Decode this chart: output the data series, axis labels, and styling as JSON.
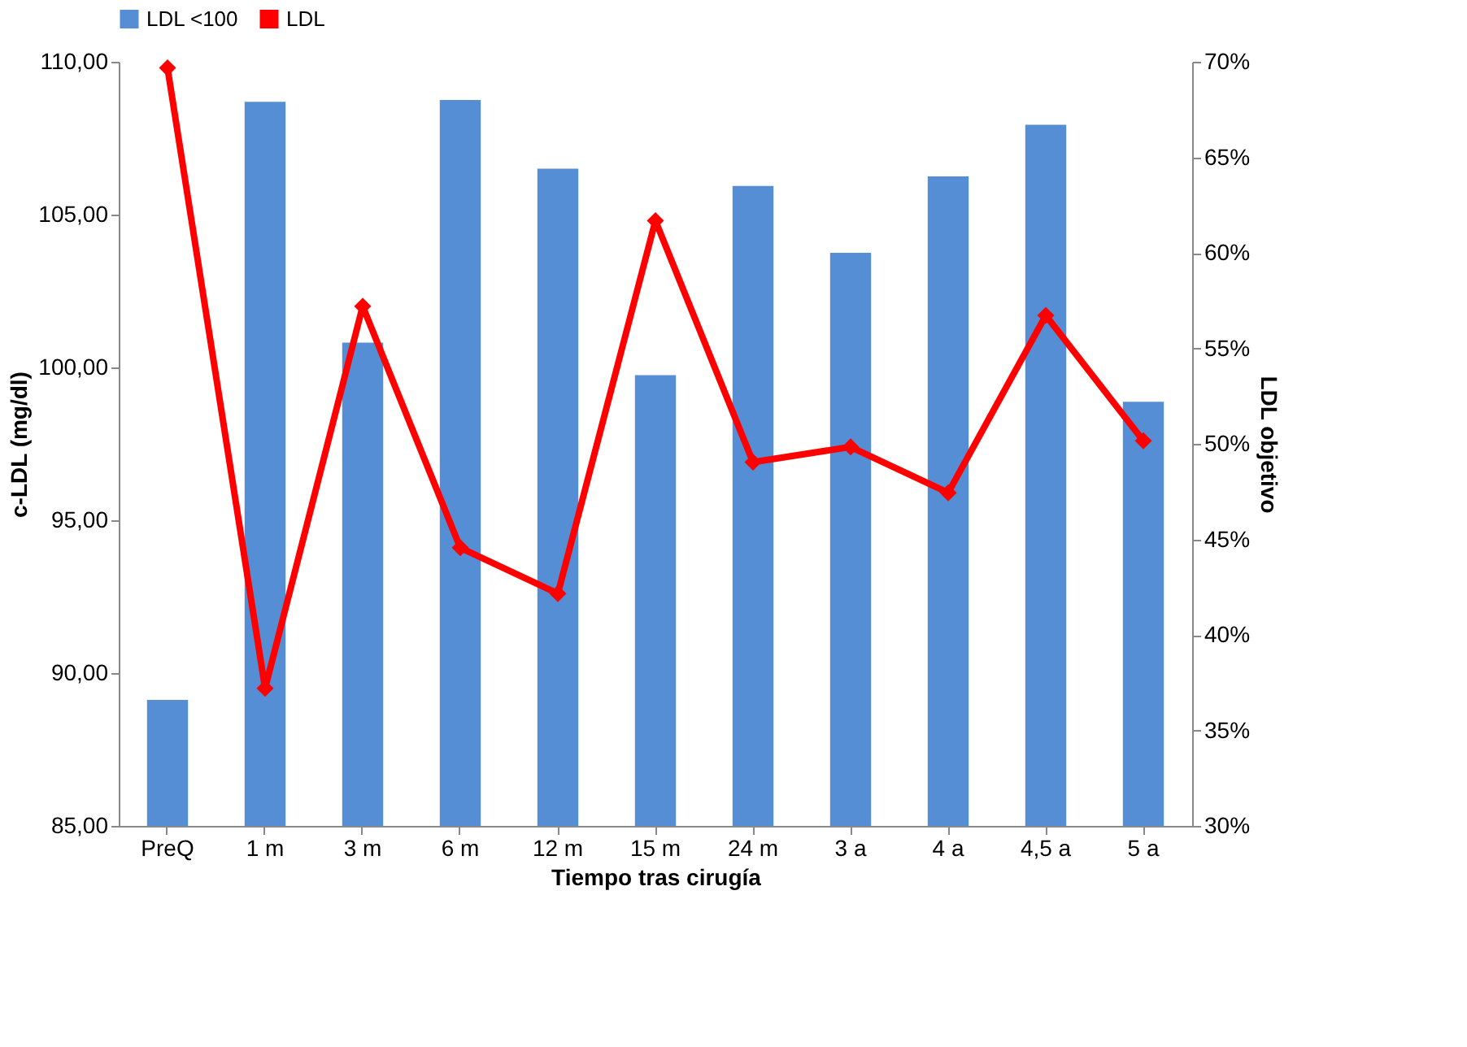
{
  "chart_data": {
    "type": "bar",
    "xlabel": "Tiempo tras cirugía",
    "ylabel": "c-LDL (mg/dl)",
    "y2label": "LDL objetivo",
    "categories": [
      "PreQ",
      "1 m",
      "3 m",
      "6 m",
      "12 m",
      "15 m",
      "24 m",
      "3 a",
      "4 a",
      "4,5 a",
      "5 a"
    ],
    "series": [
      {
        "name": "LDL <100",
        "axis": "y2",
        "color": "#558ed5",
        "values": [
          36.6,
          67.9,
          55.3,
          68.0,
          64.4,
          53.6,
          63.5,
          60.0,
          64.0,
          66.7,
          52.2
        ]
      },
      {
        "name": "LDL",
        "type": "line",
        "color": "#ff0000",
        "marker": "diamond",
        "values": [
          109.8,
          89.5,
          102.0,
          94.1,
          92.6,
          104.8,
          96.9,
          97.4,
          95.9,
          101.7,
          97.6
        ]
      }
    ],
    "ylim": [
      85,
      110
    ],
    "yticks": [
      {
        "value": 85,
        "label": "85,00"
      },
      {
        "value": 90,
        "label": "90,00"
      },
      {
        "value": 95,
        "label": "95,00"
      },
      {
        "value": 100,
        "label": "100,00"
      },
      {
        "value": 105,
        "label": "105,00"
      },
      {
        "value": 110,
        "label": "110,00"
      }
    ],
    "y2lim": [
      30,
      70
    ],
    "y2ticks": [
      {
        "value": 30,
        "label": "30%"
      },
      {
        "value": 35,
        "label": "35%"
      },
      {
        "value": 40,
        "label": "40%"
      },
      {
        "value": 45,
        "label": "45%"
      },
      {
        "value": 50,
        "label": "50%"
      },
      {
        "value": 55,
        "label": "55%"
      },
      {
        "value": 60,
        "label": "60%"
      },
      {
        "value": 65,
        "label": "65%"
      },
      {
        "value": 70,
        "label": "70%"
      }
    ],
    "grid": false,
    "legend": "top"
  }
}
